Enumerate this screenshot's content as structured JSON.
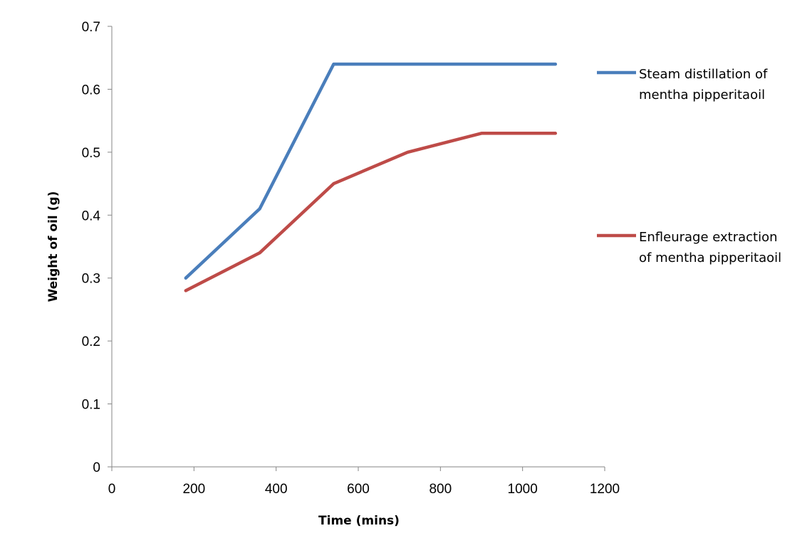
{
  "chart_data": {
    "type": "line",
    "title": "",
    "xlabel": "Time (mins)",
    "ylabel": "Weight of oil (g)",
    "xlim": [
      0,
      1200
    ],
    "ylim": [
      0,
      0.7
    ],
    "xticks": [
      "0",
      "200",
      "400",
      "600",
      "800",
      "1000",
      "1200"
    ],
    "yticks": [
      "0",
      "0.1",
      "0.2",
      "0.3",
      "0.4",
      "0.5",
      "0.6",
      "0.7"
    ],
    "grid": false,
    "legend_position": "right",
    "series": [
      {
        "name_lines": [
          "Steam distillation of",
          "mentha pipperitaoil"
        ],
        "color": "#4a7ebb",
        "x": [
          180,
          360,
          540,
          720,
          900,
          1080
        ],
        "y": [
          0.3,
          0.41,
          0.64,
          0.64,
          0.64,
          0.64
        ]
      },
      {
        "name_lines": [
          "Enfleurage extraction",
          "of mentha pipperitaoil"
        ],
        "color": "#be4b48",
        "x": [
          180,
          360,
          540,
          720,
          900,
          1080
        ],
        "y": [
          0.28,
          0.34,
          0.45,
          0.5,
          0.53,
          0.53
        ]
      }
    ]
  }
}
